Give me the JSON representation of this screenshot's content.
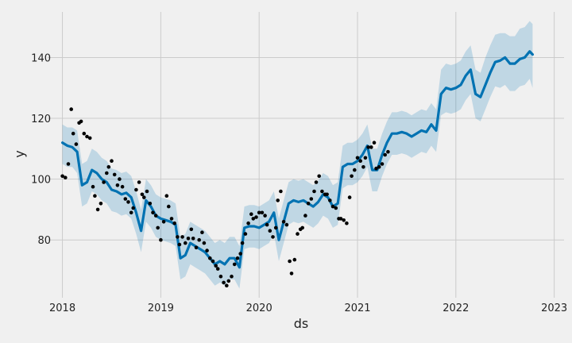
{
  "colors": {
    "background": "#f0f0f0",
    "plot_background": "#f0f0f0",
    "grid": "#cbcbcb",
    "forecast_line": "#0072b2",
    "uncertainty_band": "#0072b2",
    "observed_points": "#000000"
  },
  "chart_data": {
    "type": "line",
    "title": "",
    "xlabel": "ds",
    "ylabel": "y",
    "grid": true,
    "xlim": [
      2017.85,
      2023.1
    ],
    "ylim": [
      61,
      155
    ],
    "x_ticks": [
      2018,
      2019,
      2020,
      2021,
      2022,
      2023
    ],
    "x_tick_labels": [
      "2018",
      "2019",
      "2020",
      "2021",
      "2022",
      "2023"
    ],
    "y_ticks": [
      80,
      100,
      120,
      140
    ],
    "y_tick_labels": [
      "80",
      "100",
      "120",
      "140"
    ],
    "series": [
      {
        "kind": "forecast",
        "x": [
          2018.0,
          2018.05,
          2018.1,
          2018.15,
          2018.2,
          2018.25,
          2018.3,
          2018.35,
          2018.4,
          2018.45,
          2018.5,
          2018.55,
          2018.6,
          2018.65,
          2018.7,
          2018.75,
          2018.8,
          2018.85,
          2018.9,
          2018.95,
          2019.0,
          2019.05,
          2019.1,
          2019.15,
          2019.2,
          2019.25,
          2019.3,
          2019.35,
          2019.4,
          2019.45,
          2019.5,
          2019.55,
          2019.6,
          2019.65,
          2019.7,
          2019.75,
          2019.8,
          2019.85,
          2019.9,
          2019.95,
          2020.0,
          2020.05,
          2020.1,
          2020.15,
          2020.2,
          2020.25,
          2020.3,
          2020.35,
          2020.4,
          2020.45,
          2020.5,
          2020.55,
          2020.6,
          2020.65,
          2020.7,
          2020.75,
          2020.8,
          2020.85,
          2020.9,
          2020.95,
          2021.0,
          2021.05,
          2021.1,
          2021.15,
          2021.2,
          2021.25,
          2021.3,
          2021.35,
          2021.4,
          2021.45,
          2021.5,
          2021.55,
          2021.6,
          2021.65,
          2021.7,
          2021.75,
          2021.8,
          2021.85,
          2021.9,
          2021.95,
          2022.0,
          2022.05,
          2022.1,
          2022.15,
          2022.2,
          2022.25,
          2022.3,
          2022.35,
          2022.4,
          2022.45,
          2022.5,
          2022.55,
          2022.6,
          2022.65,
          2022.7,
          2022.75,
          2022.78
        ],
        "y": [
          112,
          111,
          110.5,
          109,
          98,
          99,
          103,
          102,
          100,
          99,
          96.5,
          96,
          95,
          95.5,
          94,
          89,
          83,
          93,
          91,
          88,
          87,
          86.5,
          86,
          85,
          74,
          75,
          79,
          78,
          77,
          76,
          74,
          72,
          73,
          72,
          74,
          74,
          71,
          84,
          84.5,
          84.5,
          84,
          85,
          86,
          89,
          80,
          86,
          92,
          93,
          92.5,
          93,
          92,
          91,
          92.5,
          95,
          94,
          91,
          92,
          104,
          105,
          105,
          106,
          108,
          111,
          103,
          103,
          108,
          112,
          115,
          115,
          115.5,
          115,
          114,
          115,
          116,
          115.5,
          118,
          116,
          128,
          130,
          129.5,
          130,
          131,
          134,
          136,
          128,
          127,
          131,
          135,
          138.5,
          139,
          140,
          138,
          138,
          139.5,
          140,
          142,
          141
        ]
      },
      {
        "kind": "uncertainty_upper",
        "x": [
          2018.0,
          2018.05,
          2018.1,
          2018.15,
          2018.2,
          2018.25,
          2018.3,
          2018.35,
          2018.4,
          2018.45,
          2018.5,
          2018.55,
          2018.6,
          2018.65,
          2018.7,
          2018.75,
          2018.8,
          2018.85,
          2018.9,
          2018.95,
          2019.0,
          2019.05,
          2019.1,
          2019.15,
          2019.2,
          2019.25,
          2019.3,
          2019.35,
          2019.4,
          2019.45,
          2019.5,
          2019.55,
          2019.6,
          2019.65,
          2019.7,
          2019.75,
          2019.8,
          2019.85,
          2019.9,
          2019.95,
          2020.0,
          2020.05,
          2020.1,
          2020.15,
          2020.2,
          2020.25,
          2020.3,
          2020.35,
          2020.4,
          2020.45,
          2020.5,
          2020.55,
          2020.6,
          2020.65,
          2020.7,
          2020.75,
          2020.8,
          2020.85,
          2020.9,
          2020.95,
          2021.0,
          2021.05,
          2021.1,
          2021.15,
          2021.2,
          2021.25,
          2021.3,
          2021.35,
          2021.4,
          2021.45,
          2021.5,
          2021.55,
          2021.6,
          2021.65,
          2021.7,
          2021.75,
          2021.8,
          2021.85,
          2021.9,
          2021.95,
          2022.0,
          2022.05,
          2022.1,
          2022.15,
          2022.2,
          2022.25,
          2022.3,
          2022.35,
          2022.4,
          2022.45,
          2022.5,
          2022.55,
          2022.6,
          2022.65,
          2022.7,
          2022.75,
          2022.78
        ],
        "y": [
          118,
          117,
          117,
          116,
          105,
          106,
          110,
          109,
          107,
          106,
          103.5,
          103,
          102,
          102.5,
          101,
          96,
          90,
          100,
          98,
          95,
          94,
          93.5,
          93,
          92,
          81,
          82,
          86,
          85,
          84,
          83,
          81,
          79,
          80,
          79,
          81,
          81,
          78,
          91,
          91.5,
          91.5,
          91,
          92,
          93,
          96,
          87,
          93,
          99,
          100,
          99.5,
          100,
          99,
          98,
          99.5,
          102,
          101,
          98,
          99,
          111,
          112,
          112,
          113,
          115,
          118,
          110,
          110,
          115,
          119,
          122,
          122,
          122.5,
          122,
          121,
          122,
          123,
          122.5,
          125,
          123,
          136,
          138,
          137.5,
          138,
          139,
          142,
          144,
          136,
          135,
          140,
          144,
          147.5,
          148,
          148,
          147,
          147,
          149.5,
          150,
          152,
          151
        ]
      },
      {
        "kind": "uncertainty_lower",
        "x": [
          2018.0,
          2018.05,
          2018.1,
          2018.15,
          2018.2,
          2018.25,
          2018.3,
          2018.35,
          2018.4,
          2018.45,
          2018.5,
          2018.55,
          2018.6,
          2018.65,
          2018.7,
          2018.75,
          2018.8,
          2018.85,
          2018.9,
          2018.95,
          2019.0,
          2019.05,
          2019.1,
          2019.15,
          2019.2,
          2019.25,
          2019.3,
          2019.35,
          2019.4,
          2019.45,
          2019.5,
          2019.55,
          2019.6,
          2019.65,
          2019.7,
          2019.75,
          2019.8,
          2019.85,
          2019.9,
          2019.95,
          2020.0,
          2020.05,
          2020.1,
          2020.15,
          2020.2,
          2020.25,
          2020.3,
          2020.35,
          2020.4,
          2020.45,
          2020.5,
          2020.55,
          2020.6,
          2020.65,
          2020.7,
          2020.75,
          2020.8,
          2020.85,
          2020.9,
          2020.95,
          2021.0,
          2021.05,
          2021.1,
          2021.15,
          2021.2,
          2021.25,
          2021.3,
          2021.35,
          2021.4,
          2021.45,
          2021.5,
          2021.55,
          2021.6,
          2021.65,
          2021.7,
          2021.75,
          2021.8,
          2021.85,
          2021.9,
          2021.95,
          2022.0,
          2022.05,
          2022.1,
          2022.15,
          2022.2,
          2022.25,
          2022.3,
          2022.35,
          2022.4,
          2022.45,
          2022.5,
          2022.55,
          2022.6,
          2022.65,
          2022.7,
          2022.75,
          2022.78
        ],
        "y": [
          105,
          104,
          104,
          102,
          91,
          92,
          96,
          95,
          93,
          92,
          89.5,
          89,
          88,
          88.5,
          87,
          82,
          76,
          86,
          84,
          81,
          80,
          79.5,
          79,
          78,
          67,
          68,
          72,
          71,
          70,
          69,
          67,
          65,
          66,
          65,
          67,
          67,
          64,
          77,
          77.5,
          77.5,
          77,
          78,
          79,
          82,
          73,
          79,
          85,
          86,
          85.5,
          86,
          85,
          84,
          85.5,
          88,
          87,
          84,
          85,
          97,
          98,
          98,
          99,
          101,
          104,
          96,
          96,
          101,
          105,
          108,
          108,
          108.5,
          108,
          107,
          108,
          109,
          108.5,
          111,
          109,
          121,
          122,
          121.5,
          122,
          123,
          126,
          128,
          120,
          119,
          123,
          127,
          130.5,
          130,
          131,
          129,
          129,
          130.5,
          131,
          133,
          130
        ]
      },
      {
        "kind": "observed",
        "x": [
          2018.0,
          2018.03,
          2018.06,
          2018.09,
          2018.11,
          2018.14,
          2018.17,
          2018.19,
          2018.22,
          2018.25,
          2018.28,
          2018.31,
          2018.33,
          2018.36,
          2018.39,
          2018.42,
          2018.45,
          2018.47,
          2018.5,
          2018.53,
          2018.56,
          2018.58,
          2018.61,
          2018.64,
          2018.67,
          2018.7,
          2018.72,
          2018.75,
          2018.78,
          2018.81,
          2018.83,
          2018.86,
          2018.89,
          2018.92,
          2018.95,
          2018.97,
          2019.0,
          2019.03,
          2019.06,
          2019.08,
          2019.11,
          2019.14,
          2019.17,
          2019.19,
          2019.22,
          2019.25,
          2019.28,
          2019.31,
          2019.33,
          2019.36,
          2019.39,
          2019.42,
          2019.44,
          2019.47,
          2019.5,
          2019.53,
          2019.56,
          2019.58,
          2019.61,
          2019.64,
          2019.67,
          2019.69,
          2019.72,
          2019.75,
          2019.78,
          2019.81,
          2019.83,
          2019.86,
          2019.89,
          2019.92,
          2019.94,
          2019.97,
          2020.0,
          2020.03,
          2020.06,
          2020.08,
          2020.11,
          2020.14,
          2020.17,
          2020.19,
          2020.22,
          2020.25,
          2020.28,
          2020.31,
          2020.33,
          2020.36,
          2020.39,
          2020.42,
          2020.44,
          2020.47,
          2020.5,
          2020.53,
          2020.56,
          2020.58,
          2020.61,
          2020.64,
          2020.67,
          2020.69,
          2020.72,
          2020.75,
          2020.78,
          2020.81,
          2020.83,
          2020.86,
          2020.89,
          2020.92,
          2020.94,
          2020.97,
          2021.0,
          2021.03,
          2021.06,
          2021.08,
          2021.11,
          2021.14,
          2021.17,
          2021.19,
          2021.22,
          2021.25,
          2021.28,
          2021.31
        ],
        "y": [
          101,
          100.5,
          105,
          123,
          115,
          111.5,
          118.5,
          119,
          115,
          114,
          113.5,
          97.5,
          94.5,
          90,
          92,
          99,
          102,
          104,
          106,
          101.5,
          98,
          100,
          97.5,
          93.5,
          92.5,
          89,
          90.5,
          96.5,
          99,
          95,
          94,
          96,
          92,
          89,
          88,
          84,
          80,
          86,
          94.5,
          91,
          87,
          85.5,
          81,
          78.5,
          81,
          79,
          80.5,
          83.5,
          80.5,
          77.5,
          80,
          82.5,
          79,
          76.5,
          74,
          73,
          71.5,
          70.5,
          68,
          66,
          65,
          66.5,
          68,
          72,
          74,
          75.5,
          79,
          82,
          85.5,
          88.5,
          87,
          87.5,
          89,
          89,
          88,
          85,
          83,
          81,
          84,
          93,
          96,
          86,
          85,
          73,
          69,
          73.5,
          82,
          83.5,
          84,
          88,
          92,
          93.5,
          96,
          99,
          101,
          96,
          95,
          95,
          93,
          91,
          90.5,
          87,
          87,
          86.5,
          85.5,
          94,
          101,
          103,
          107,
          106,
          104,
          107,
          110.5,
          110.5,
          112,
          103.5,
          104,
          105,
          108,
          109
        ]
      }
    ]
  }
}
